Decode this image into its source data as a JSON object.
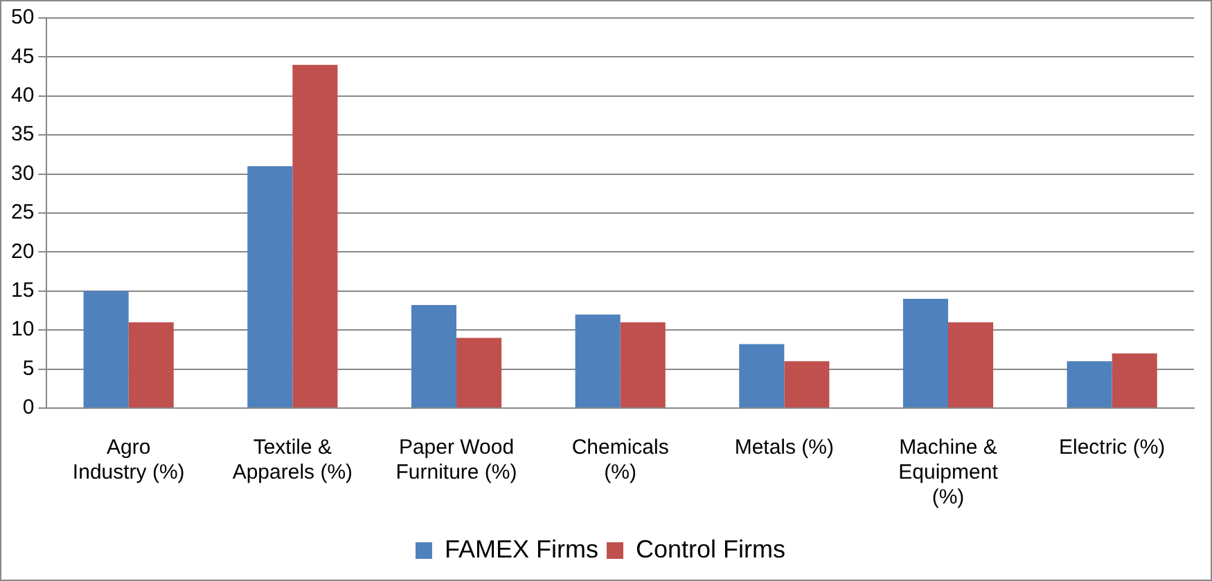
{
  "chart_data": {
    "type": "bar",
    "categories": [
      "Agro\nIndustry (%)",
      "Textile &\nApparels (%)",
      "Paper Wood\nFurniture (%)",
      "Chemicals\n(%)",
      "Metals (%)",
      "Machine &\nEquipment\n(%)",
      "Electric (%)"
    ],
    "series": [
      {
        "name": "FAMEX Firms",
        "color": "#4f81bd",
        "values": [
          15,
          31,
          13.2,
          12,
          8.2,
          14,
          6
        ]
      },
      {
        "name": "Control Firms",
        "color": "#c0504d",
        "values": [
          11,
          44,
          9,
          11,
          6,
          11,
          7
        ]
      }
    ],
    "ylim": [
      0,
      50
    ],
    "yticks": [
      0,
      5,
      10,
      15,
      20,
      25,
      30,
      35,
      40,
      45,
      50
    ],
    "grid": "y",
    "legend": "bottom"
  }
}
